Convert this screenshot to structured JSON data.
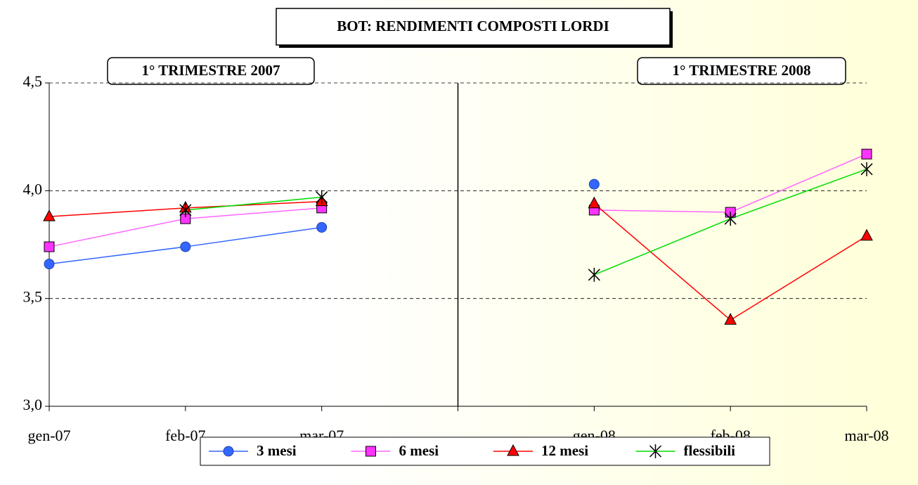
{
  "chart_data": {
    "type": "line",
    "title": "BOT: RENDIMENTI COMPOSTI LORDI",
    "annotations": [
      "1° TRIMESTRE 2007",
      "1° TRIMESTRE 2008"
    ],
    "categories": [
      "gen-07",
      "feb-07",
      "mar-07",
      null,
      "gen-08",
      "feb-08",
      "mar-08"
    ],
    "series": [
      {
        "name": "3 mesi",
        "color": "#3366ff",
        "marker": "circle",
        "marker_color": "#3366ff",
        "values": [
          3.66,
          3.74,
          3.83,
          null,
          4.03,
          null,
          null
        ]
      },
      {
        "name": "6 mesi",
        "color": "#ff66ff",
        "marker": "square",
        "marker_color": "#ff33ff",
        "values": [
          3.74,
          3.87,
          3.92,
          null,
          3.91,
          3.9,
          4.17
        ]
      },
      {
        "name": "12 mesi",
        "color": "#ff0000",
        "marker": "triangle",
        "marker_color": "#ff0000",
        "values": [
          3.88,
          3.92,
          3.95,
          null,
          3.94,
          3.4,
          3.79
        ]
      },
      {
        "name": "flessibili",
        "color": "#00dd00",
        "marker": "star",
        "marker_color": "#000000",
        "values": [
          null,
          3.91,
          3.97,
          null,
          3.61,
          3.87,
          4.1
        ]
      }
    ],
    "ylim": [
      3.0,
      4.5
    ],
    "yticks": [
      {
        "value": 3.0,
        "label": "3,0"
      },
      {
        "value": 3.5,
        "label": "3,5"
      },
      {
        "value": 4.0,
        "label": "4,0"
      },
      {
        "value": 4.5,
        "label": "4,5"
      }
    ],
    "grid": true
  }
}
